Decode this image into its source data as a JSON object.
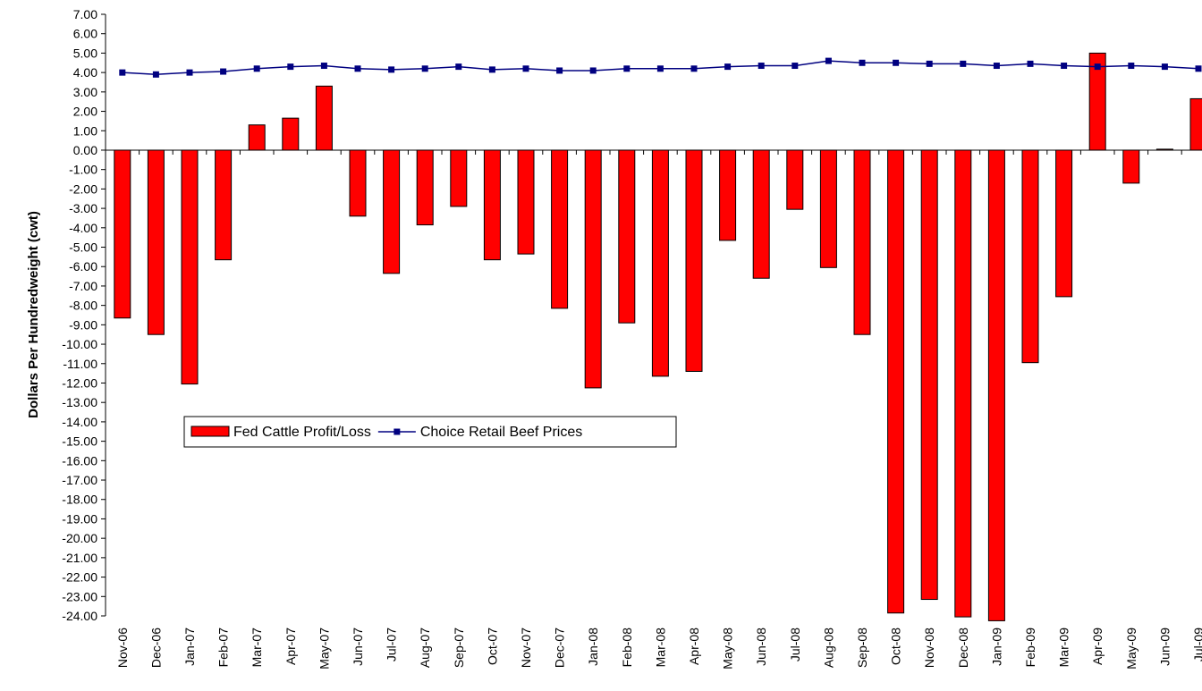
{
  "chart_data": {
    "type": "bar-line",
    "y_axis_label": "Dollars Per Hundredweight (cwt)",
    "categories": [
      "Nov-06",
      "Dec-06",
      "Jan-07",
      "Feb-07",
      "Mar-07",
      "Apr-07",
      "May-07",
      "Jun-07",
      "Jul-07",
      "Aug-07",
      "Sep-07",
      "Oct-07",
      "Nov-07",
      "Dec-07",
      "Jan-08",
      "Feb-08",
      "Mar-08",
      "Apr-08",
      "May-08",
      "Jun-08",
      "Jul-08",
      "Aug-08",
      "Sep-08",
      "Oct-08",
      "Nov-08",
      "Dec-08",
      "Jan-09",
      "Feb-09",
      "Mar-09",
      "Apr-09",
      "May-09",
      "Jun-09",
      "Jul-09"
    ],
    "series": [
      {
        "name": "Fed Cattle Profit/Loss",
        "type": "bar",
        "color": "#ff0000",
        "values": [
          -8.65,
          -9.5,
          -12.05,
          -5.65,
          1.3,
          1.65,
          3.3,
          -3.4,
          -6.35,
          -3.85,
          -2.9,
          -5.65,
          -5.35,
          -8.15,
          -12.25,
          -8.9,
          -11.65,
          -11.4,
          -4.65,
          -6.6,
          -3.05,
          -6.05,
          -9.5,
          -23.85,
          -23.15,
          -24.05,
          -24.25,
          -10.95,
          -7.55,
          5.0,
          -1.7,
          0.05,
          2.65
        ]
      },
      {
        "name": "Choice Retail Beef Prices",
        "type": "line",
        "color": "#000080",
        "values": [
          4.0,
          3.9,
          4.0,
          4.05,
          4.2,
          4.3,
          4.35,
          4.2,
          4.15,
          4.2,
          4.3,
          4.15,
          4.2,
          4.1,
          4.1,
          4.2,
          4.2,
          4.2,
          4.3,
          4.35,
          4.35,
          4.6,
          4.5,
          4.5,
          4.45,
          4.45,
          4.35,
          4.45,
          4.35,
          4.3,
          4.35,
          4.3,
          4.2
        ]
      }
    ],
    "ylim": [
      -24,
      7
    ],
    "yticks": [
      {
        "value": 7,
        "label": "7.00"
      },
      {
        "value": 6,
        "label": "6.00"
      },
      {
        "value": 5,
        "label": "5.00"
      },
      {
        "value": 4,
        "label": "4.00"
      },
      {
        "value": 3,
        "label": "3.00"
      },
      {
        "value": 2,
        "label": "2.00"
      },
      {
        "value": 1,
        "label": "1.00"
      },
      {
        "value": 0,
        "label": "0.00"
      },
      {
        "value": -1,
        "label": "-1.00"
      },
      {
        "value": -2,
        "label": "-2.00"
      },
      {
        "value": -3,
        "label": "-3.00"
      },
      {
        "value": -4,
        "label": "-4.00"
      },
      {
        "value": -5,
        "label": "-5.00"
      },
      {
        "value": -6,
        "label": "-6.00"
      },
      {
        "value": -7,
        "label": "-7.00"
      },
      {
        "value": -8,
        "label": "-8.00"
      },
      {
        "value": -9,
        "label": "-9.00"
      },
      {
        "value": -10,
        "label": "-10.00"
      },
      {
        "value": -11,
        "label": "-11.00"
      },
      {
        "value": -12,
        "label": "-12.00"
      },
      {
        "value": -13,
        "label": "-13.00"
      },
      {
        "value": -14,
        "label": "-14.00"
      },
      {
        "value": -15,
        "label": "-15.00"
      },
      {
        "value": -16,
        "label": "-16.00"
      },
      {
        "value": -17,
        "label": "-17.00"
      },
      {
        "value": -18,
        "label": "-18.00"
      },
      {
        "value": -19,
        "label": "-19.00"
      },
      {
        "value": -20,
        "label": "-20.00"
      },
      {
        "value": -21,
        "label": "-21.00"
      },
      {
        "value": -22,
        "label": "-22.00"
      },
      {
        "value": -23,
        "label": "-23.00"
      },
      {
        "value": -24,
        "label": "-24.00"
      }
    ],
    "grid": false
  }
}
